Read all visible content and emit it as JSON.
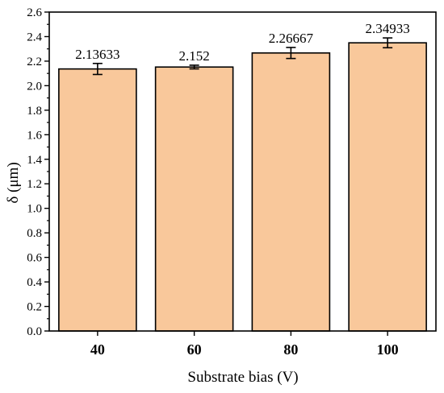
{
  "chart_data": {
    "type": "bar",
    "categories": [
      "40",
      "60",
      "80",
      "100"
    ],
    "values": [
      2.13633,
      2.152,
      2.26667,
      2.34933
    ],
    "errors": [
      0.045,
      0.015,
      0.045,
      0.04
    ],
    "data_labels": [
      "2.13633",
      "2.152",
      "2.26667",
      "2.34933"
    ],
    "title": "",
    "xlabel": "Substrate bias (V)",
    "ylabel": "δ (μm)",
    "ylim": [
      0,
      2.6
    ],
    "yticks": [
      "0.0",
      "0.2",
      "0.4",
      "0.6",
      "0.8",
      "1.0",
      "1.2",
      "1.4",
      "1.6",
      "1.8",
      "2.0",
      "2.2",
      "2.4",
      "2.6"
    ],
    "grid": false,
    "bar_color": "#F9C89B",
    "edge_color": "#000000"
  }
}
